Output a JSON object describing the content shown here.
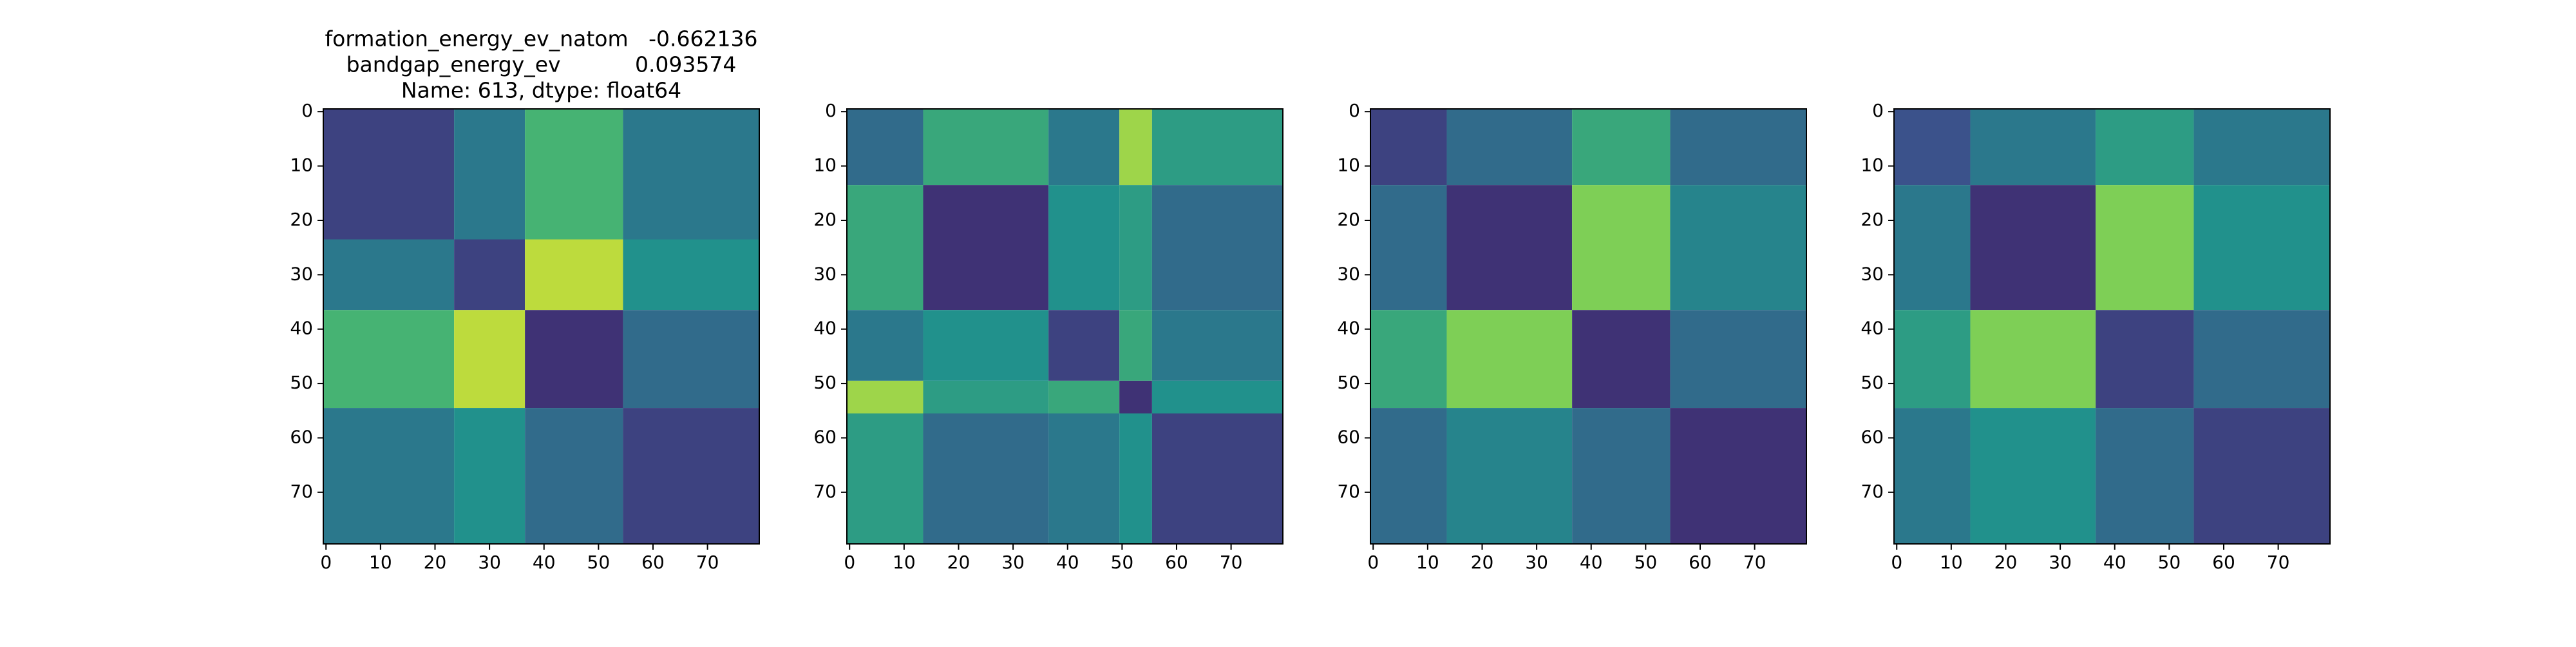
{
  "chart_data": [
    {
      "type": "heatmap",
      "cmap": "viridis",
      "title_lines": [
        "formation_energy_ev_natom   -0.662136",
        "bandgap_energy_ev           0.093574",
        "Name: 613, dtype: float64"
      ],
      "bins": [
        0,
        24,
        37,
        55,
        80
      ],
      "values": [
        [
          0.2,
          0.4,
          0.65,
          0.4
        ],
        [
          0.4,
          0.2,
          0.9,
          0.5
        ],
        [
          0.65,
          0.9,
          0.15,
          0.35
        ],
        [
          0.4,
          0.5,
          0.35,
          0.2
        ]
      ],
      "xlim": [
        -0.5,
        79.5
      ],
      "ylim": [
        79.5,
        -0.5
      ],
      "xticks": [
        0,
        10,
        20,
        30,
        40,
        50,
        60,
        70
      ],
      "yticks": [
        0,
        10,
        20,
        30,
        40,
        50,
        60,
        70
      ]
    },
    {
      "type": "heatmap",
      "cmap": "viridis",
      "bins": [
        0,
        14,
        37,
        50,
        56,
        80
      ],
      "values": [
        [
          0.35,
          0.6,
          0.4,
          0.85,
          0.55
        ],
        [
          0.6,
          0.15,
          0.5,
          0.55,
          0.35
        ],
        [
          0.4,
          0.5,
          0.2,
          0.6,
          0.4
        ],
        [
          0.85,
          0.55,
          0.6,
          0.15,
          0.5
        ],
        [
          0.55,
          0.35,
          0.4,
          0.5,
          0.2
        ]
      ],
      "xlim": [
        -0.5,
        79.5
      ],
      "ylim": [
        79.5,
        -0.5
      ],
      "xticks": [
        0,
        10,
        20,
        30,
        40,
        50,
        60,
        70
      ],
      "yticks": [
        0,
        10,
        20,
        30,
        40,
        50,
        60,
        70
      ]
    },
    {
      "type": "heatmap",
      "cmap": "viridis",
      "bins": [
        0,
        14,
        37,
        55,
        80
      ],
      "values": [
        [
          0.2,
          0.35,
          0.6,
          0.35
        ],
        [
          0.35,
          0.15,
          0.8,
          0.45
        ],
        [
          0.6,
          0.8,
          0.15,
          0.35
        ],
        [
          0.35,
          0.45,
          0.35,
          0.15
        ]
      ],
      "xlim": [
        -0.5,
        79.5
      ],
      "ylim": [
        79.5,
        -0.5
      ],
      "xticks": [
        0,
        10,
        20,
        30,
        40,
        50,
        60,
        70
      ],
      "yticks": [
        0,
        10,
        20,
        30,
        40,
        50,
        60,
        70
      ]
    },
    {
      "type": "heatmap",
      "cmap": "viridis",
      "bins": [
        0,
        14,
        37,
        55,
        80
      ],
      "values": [
        [
          0.25,
          0.4,
          0.55,
          0.4
        ],
        [
          0.4,
          0.15,
          0.8,
          0.5
        ],
        [
          0.55,
          0.8,
          0.2,
          0.35
        ],
        [
          0.4,
          0.5,
          0.35,
          0.2
        ]
      ],
      "xlim": [
        -0.5,
        79.5
      ],
      "ylim": [
        79.5,
        -0.5
      ],
      "xticks": [
        0,
        10,
        20,
        30,
        40,
        50,
        60,
        70
      ],
      "yticks": [
        0,
        10,
        20,
        30,
        40,
        50,
        60,
        70
      ]
    }
  ]
}
